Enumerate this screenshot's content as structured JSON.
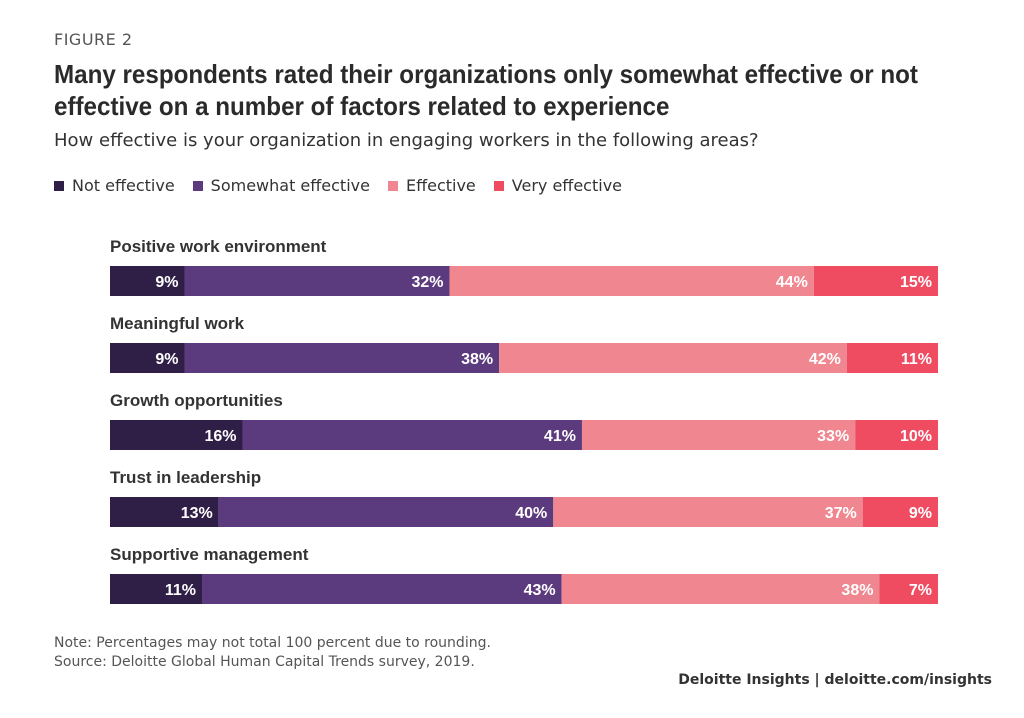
{
  "figure_label": "FIGURE 2",
  "title": "Many respondents rated their organizations only somewhat effective or not effective on a number of factors related to experience",
  "subtitle": "How effective is your organization in engaging workers in the following areas?",
  "legend": [
    {
      "label": "Not effective",
      "color": "#2f1f47"
    },
    {
      "label": "Somewhat effective",
      "color": "#5b3a7e"
    },
    {
      "label": "Effective",
      "color": "#f0868f"
    },
    {
      "label": "Very effective",
      "color": "#ef4c62"
    }
  ],
  "chart_data": {
    "type": "bar",
    "orientation": "horizontal",
    "stacked": true,
    "categories": [
      "Positive work environment",
      "Meaningful work",
      "Growth opportunities",
      "Trust in leadership",
      "Supportive management"
    ],
    "series": [
      {
        "name": "Not effective",
        "values": [
          9,
          9,
          16,
          13,
          11
        ],
        "color": "#2f1f47"
      },
      {
        "name": "Somewhat effective",
        "values": [
          32,
          38,
          41,
          40,
          43
        ],
        "color": "#5b3a7e"
      },
      {
        "name": "Effective",
        "values": [
          44,
          42,
          33,
          37,
          38
        ],
        "color": "#f0868f"
      },
      {
        "name": "Very effective",
        "values": [
          15,
          11,
          10,
          9,
          7
        ],
        "color": "#ef4c62"
      }
    ],
    "value_suffix": "%",
    "legend_position": "top-left"
  },
  "note": "Note: Percentages may not total 100 percent due to rounding.",
  "source": "Source: Deloitte Global Human Capital Trends survey, 2019.",
  "brand": "Deloitte Insights | deloitte.com/insights"
}
